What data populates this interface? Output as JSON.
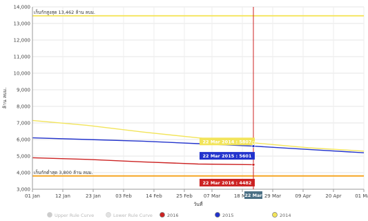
{
  "chart_data": {
    "type": "line",
    "xlabel": "วันที่",
    "ylabel": "ล้าน ลบม.",
    "ylim": [
      3000,
      14000
    ],
    "y_ticks": [
      3000,
      4000,
      5000,
      6000,
      7000,
      8000,
      9000,
      10000,
      11000,
      12000,
      13000,
      14000
    ],
    "y_tick_labels": [
      "3,000",
      "4,000",
      "5,000",
      "6,000",
      "7,000",
      "8,000",
      "9,000",
      "10,000",
      "11,000",
      "12,000",
      "13,000",
      "14,000"
    ],
    "x_tick_labels": [
      "01 Jan",
      "12 Jan",
      "23 Jan",
      "03 Feb",
      "14 Feb",
      "25 Feb",
      "07 Mar",
      "18 Mar",
      "29 Mar",
      "09 Apr",
      "20 Apr",
      "01 May"
    ],
    "x_tick_days": [
      0,
      11,
      22,
      33,
      44,
      55,
      65,
      76,
      87,
      98,
      109,
      120
    ],
    "xlim_days": [
      0,
      120
    ],
    "grid": true,
    "legend_position": "bottom",
    "reference_lines": [
      {
        "name": "upper",
        "value": 13462,
        "label": "เก็บกักสูงสุด 13,462 ล้าน ลบม.",
        "color": "#f5e663"
      },
      {
        "name": "lower",
        "value": 3800,
        "label": "เก็บกักต่ำสุด 3,800 ล้าน ลบม.",
        "color": "#f5a623"
      }
    ],
    "series": [
      {
        "name": "2014",
        "color": "#f2e45a",
        "x_days": [
          0,
          20,
          40,
          60,
          80,
          100,
          120
        ],
        "values": [
          7150,
          6850,
          6450,
          6100,
          5800,
          5500,
          5300
        ]
      },
      {
        "name": "2015",
        "color": "#2233cc",
        "x_days": [
          0,
          20,
          40,
          60,
          80,
          100,
          120
        ],
        "values": [
          6100,
          6000,
          5900,
          5750,
          5600,
          5400,
          5200
        ]
      },
      {
        "name": "2016",
        "color": "#cc2222",
        "x_days": [
          0,
          20,
          40,
          60,
          80
        ],
        "values": [
          4900,
          4800,
          4650,
          4520,
          4482
        ]
      }
    ],
    "crosshair": {
      "x_day": 80,
      "label": "22 Mar",
      "color": "#cc2222"
    },
    "tooltips": [
      {
        "text": "22 Mar 2014 : 5807",
        "color": "#f2e45a"
      },
      {
        "text": "22 Mar 2015 : 5601",
        "color": "#2233cc"
      },
      {
        "text": "22 Mar 2016 : 4482",
        "color": "#cc2222"
      }
    ],
    "legend": [
      {
        "label": "Upper Rule Curve",
        "color": "#cccccc",
        "muted": true
      },
      {
        "label": "Lower Rule Curve",
        "color": "#e2e2e2",
        "muted": true
      },
      {
        "label": "2016",
        "color": "#cc2222",
        "muted": false
      },
      {
        "label": "2015",
        "color": "#2233cc",
        "muted": false
      },
      {
        "label": "2014",
        "color": "#f2e45a",
        "muted": false
      }
    ]
  }
}
